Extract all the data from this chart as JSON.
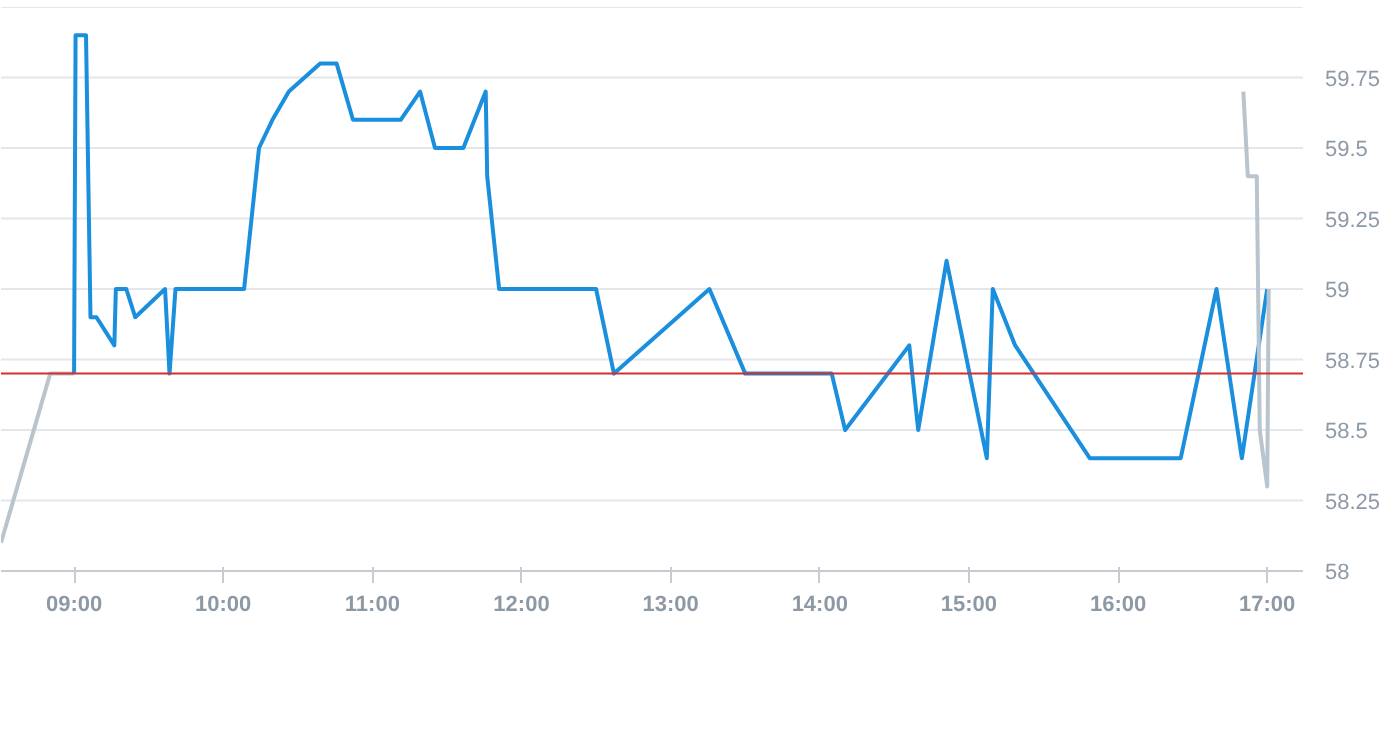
{
  "chart_data": {
    "type": "line",
    "xlim": [
      8.51,
      17.24
    ],
    "ylim": [
      58,
      60
    ],
    "xticks": [
      {
        "value": 9,
        "label": "09:00"
      },
      {
        "value": 10,
        "label": "10:00"
      },
      {
        "value": 11,
        "label": "11:00"
      },
      {
        "value": 12,
        "label": "12:00"
      },
      {
        "value": 13,
        "label": "13:00"
      },
      {
        "value": 14,
        "label": "14:00"
      },
      {
        "value": 15,
        "label": "15:00"
      },
      {
        "value": 16,
        "label": "16:00"
      },
      {
        "value": 17,
        "label": "17:00"
      }
    ],
    "yticks": [
      58,
      58.25,
      58.5,
      58.75,
      59,
      59.25,
      59.5,
      59.75,
      {
        "value": 60,
        "label": null
      }
    ],
    "grid": "y",
    "marker": "none",
    "line_style": "solid",
    "series": [
      {
        "color": "#b8c4ce",
        "x": [
          8.51,
          8.84,
          9.0
        ],
        "values": [
          58.1,
          58.7,
          58.7
        ]
      },
      {
        "color": "#1a8fdd",
        "x": [
          9.0,
          9.01,
          9.08,
          9.11,
          9.15,
          9.27,
          9.28,
          9.35,
          9.41,
          9.61,
          9.64,
          9.68,
          10.14,
          10.24,
          10.33,
          10.44,
          10.65,
          10.76,
          10.87,
          11.19,
          11.32,
          11.42,
          11.61,
          11.76,
          11.77,
          11.85,
          12.5,
          12.62,
          13.26,
          13.5,
          14.08,
          14.17,
          14.6,
          14.66,
          14.85,
          15.12,
          15.16,
          15.31,
          15.81,
          16.42,
          16.66,
          16.83,
          17.0
        ],
        "values": [
          58.7,
          59.9,
          59.9,
          58.9,
          58.9,
          58.8,
          59.0,
          59.0,
          58.9,
          59.0,
          58.7,
          59.0,
          59.0,
          59.5,
          59.6,
          59.7,
          59.8,
          59.8,
          59.6,
          59.6,
          59.7,
          59.5,
          59.5,
          59.7,
          59.4,
          59.0,
          59.0,
          58.7,
          59.0,
          58.7,
          58.7,
          58.5,
          58.8,
          58.5,
          59.1,
          58.4,
          59.0,
          58.8,
          58.4,
          58.4,
          59.0,
          58.4,
          59.0
        ]
      },
      {
        "color": "#b8c4ce",
        "x": [
          16.84,
          16.87,
          16.93,
          16.95,
          17.0,
          17.01
        ],
        "values": [
          59.7,
          59.4,
          59.4,
          58.5,
          58.3,
          59.0
        ]
      }
    ],
    "ref_lines": [
      {
        "axis": "y",
        "value": 58.7,
        "color": "#d32f2f"
      }
    ]
  }
}
